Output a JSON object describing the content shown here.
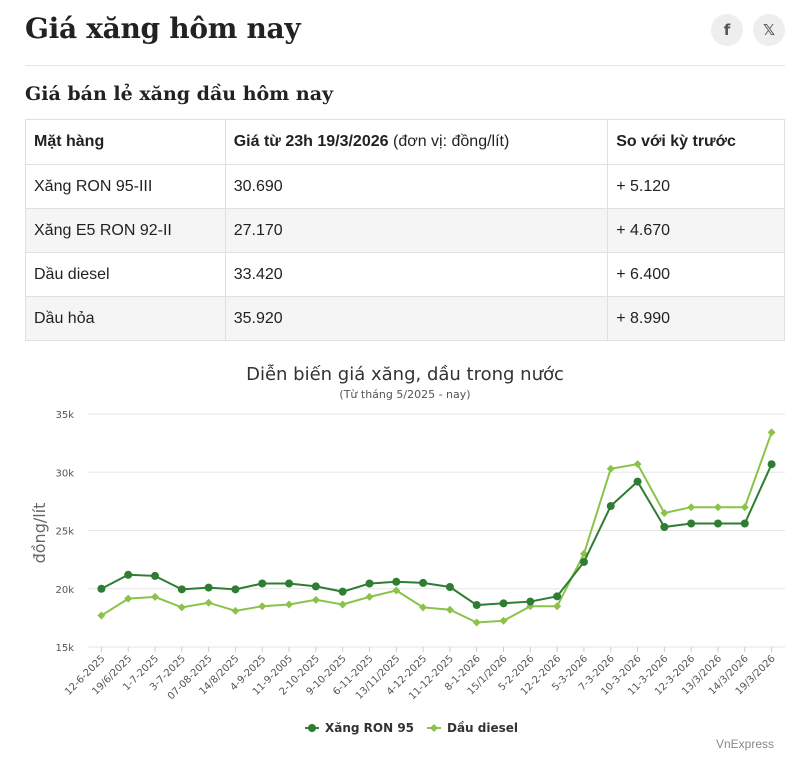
{
  "header": {
    "title": "Giá xăng hôm nay",
    "share_facebook_glyph": "f",
    "share_x_glyph": "𝕏"
  },
  "section": {
    "title": "Giá bán lẻ xăng dầu hôm nay"
  },
  "table": {
    "headers": [
      "Mặt hàng",
      "Giá từ 23h 19/3/2026",
      "(đơn vị: đồng/lít)",
      "So với kỳ trước"
    ],
    "rows": [
      [
        "Xăng RON 95-III",
        "30.690",
        "+ 5.120"
      ],
      [
        "Xăng E5 RON 92-II",
        "27.170",
        "+ 4.670"
      ],
      [
        "Dầu diesel",
        "33.420",
        "+ 6.400"
      ],
      [
        "Dầu hỏa",
        "35.920",
        "+ 8.990"
      ]
    ]
  },
  "chart_data": {
    "type": "line",
    "title": "Diễn biến giá xăng, dầu trong nước",
    "subtitle": "(Từ tháng 5/2025 - nay)",
    "ylabel": "đồng/lít",
    "ylim": [
      15000,
      35000
    ],
    "yticks": [
      15000,
      20000,
      25000,
      30000,
      35000
    ],
    "ytick_labels": [
      "15k",
      "20k",
      "25k",
      "30k",
      "35k"
    ],
    "grid": true,
    "legend_position": "bottom",
    "categories": [
      "12-6-2025",
      "19/6/2025",
      "1-7-2025",
      "3-7-2025",
      "07-08-2025",
      "14/8/2025",
      "4-9-2025",
      "11-9-2005",
      "2-10-2025",
      "9-10-2025",
      "6-11-2025",
      "13/11/2025",
      "4-12-2025",
      "11-12-2025",
      "8-1-2026",
      "15/1/2026",
      "5-2-2026",
      "12-2-2026",
      "5-3-2026",
      "7-3-2026",
      "10-3-2026",
      "11-3-2026",
      "12-3-2026",
      "13/3/2026",
      "14/3/2026",
      "19/3/2026"
    ],
    "series": [
      {
        "name": "Xăng RON 95",
        "color": "#2e7d32",
        "marker": "circle",
        "values": [
          20000,
          21200,
          21100,
          19950,
          20100,
          19950,
          20450,
          20450,
          20200,
          19750,
          20450,
          20600,
          20500,
          20150,
          18600,
          18750,
          18900,
          19350,
          22300,
          27100,
          29200,
          25300,
          25600,
          25600,
          25600,
          30690
        ]
      },
      {
        "name": "Dầu diesel",
        "color": "#8bc34a",
        "marker": "diamond",
        "values": [
          17700,
          19150,
          19300,
          18400,
          18800,
          18100,
          18500,
          18650,
          19050,
          18650,
          19300,
          19850,
          18400,
          18200,
          17100,
          17250,
          18500,
          18500,
          23000,
          30300,
          30700,
          26500,
          27000,
          27000,
          27000,
          33420
        ]
      }
    ]
  },
  "credit": "VnExpress"
}
